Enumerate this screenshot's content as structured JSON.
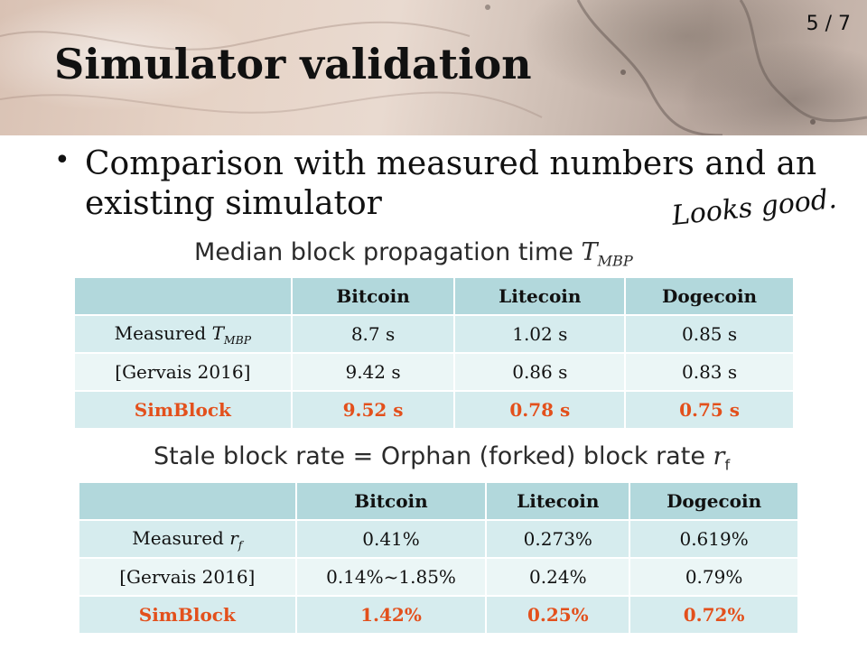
{
  "page_number": "5 / 7",
  "title": "Simulator validation",
  "bullet": "Comparison with measured numbers and an existing simulator",
  "annotation": "Looks good.",
  "table1": {
    "caption_prefix": "Median block propagation time ",
    "caption_var": "T",
    "caption_sub": "MBP",
    "headers": [
      "",
      "Bitcoin",
      "Litecoin",
      "Dogecoin"
    ],
    "rows": [
      {
        "label": "Measured ",
        "label_var": "T",
        "label_sub": "MBP",
        "values": [
          "8.7 s",
          "1.02 s",
          "0.85 s"
        ]
      },
      {
        "label": "[Gervais 2016]",
        "values": [
          "9.42 s",
          "0.86 s",
          "0.83 s"
        ]
      },
      {
        "label": "SimBlock",
        "values": [
          "9.52 s",
          "0.78 s",
          "0.75 s"
        ]
      }
    ]
  },
  "table2": {
    "caption_prefix": "Stale block rate = Orphan (forked) block rate ",
    "caption_var": "r",
    "caption_sub": "f",
    "headers": [
      "",
      "Bitcoin",
      "Litecoin",
      "Dogecoin"
    ],
    "rows": [
      {
        "label": "Measured ",
        "label_var": "r",
        "label_sub": "f",
        "values": [
          "0.41%",
          "0.273%",
          "0.619%"
        ]
      },
      {
        "label": "[Gervais 2016]",
        "values": [
          "0.14%~1.85%",
          "0.24%",
          "0.79%"
        ]
      },
      {
        "label": "SimBlock",
        "values": [
          "1.42%",
          "0.25%",
          "0.72%"
        ]
      }
    ]
  },
  "colors": {
    "header_bg": "#b2d8dc",
    "row_bg": "#d6ecee",
    "row_alt_bg": "#ebf6f6",
    "simblock_text": "#e3501c"
  }
}
